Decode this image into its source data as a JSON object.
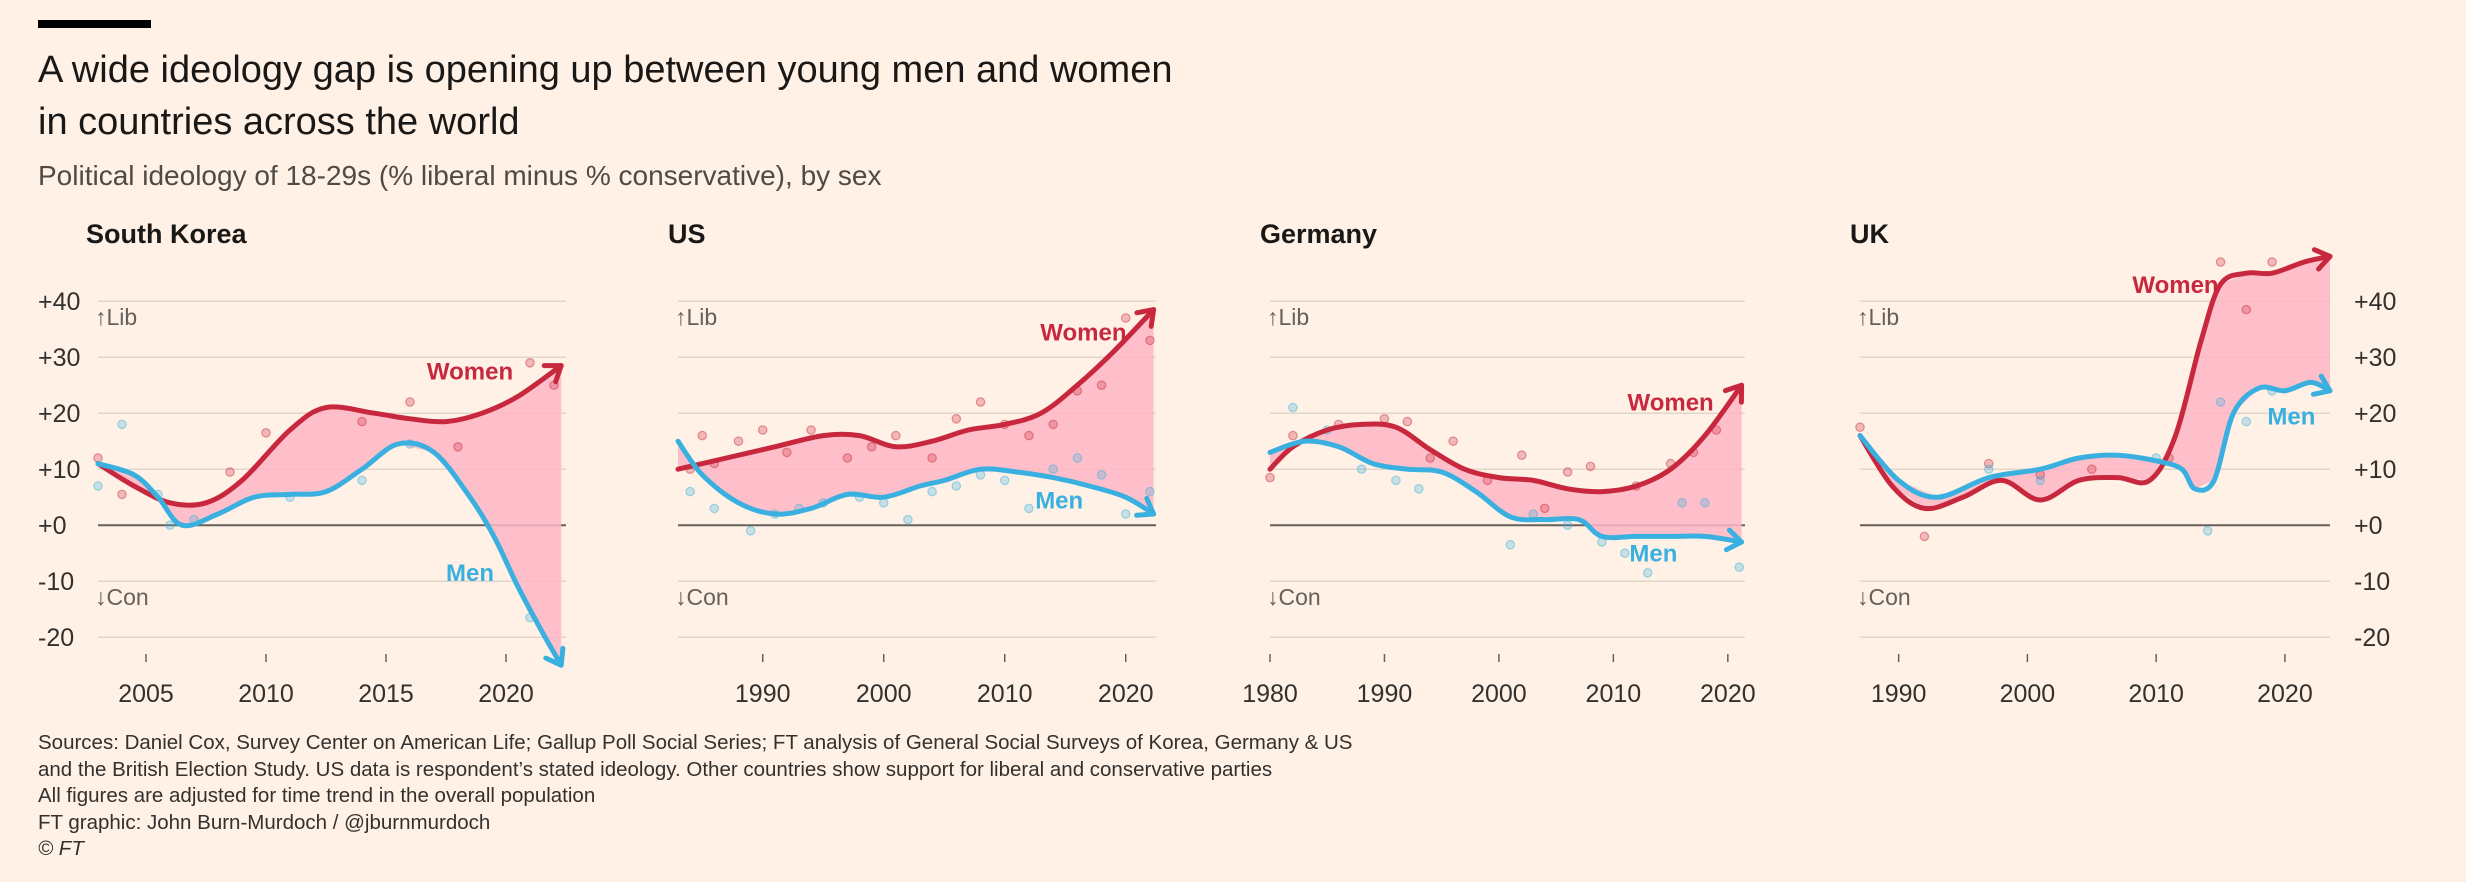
{
  "title_line1": "A wide ideology gap is opening up between young men and women",
  "title_line2": "in countries across the world",
  "subtitle": "Political ideology of 18-29s (% liberal minus % conservative), by sex",
  "footer": {
    "line1": "Sources: Daniel Cox, Survey Center on American Life; Gallup Poll Social Series; FT analysis of General Social Surveys of Korea, Germany & US",
    "line2": "and the British Election Study. US data is respondent’s stated ideology. Other countries show support for liberal and conservative parties",
    "line3": "All figures are adjusted for time trend in the overall population",
    "line4": "FT graphic: John Burn-Murdoch / @jburnmurdoch",
    "line5": "© FT"
  },
  "colors": {
    "background": "#fff1e5",
    "women": "#c8283e",
    "men": "#3ab0e0",
    "gap_fill": "#ffb6c6",
    "grid": "#e2d6ca",
    "zero_line": "#66605c",
    "axis_text": "#66605c"
  },
  "chart_data": [
    {
      "type": "line",
      "title": "South Korea",
      "xlim": [
        2003,
        2022.5
      ],
      "ylim": [
        -23,
        42
      ],
      "xticks": [
        2005,
        2010,
        2015,
        2020
      ],
      "yticks": [
        40,
        30,
        20,
        10,
        0,
        -10,
        -20
      ],
      "ytick_labels": [
        "+40",
        "+30",
        "+20",
        "+10",
        "+0",
        "-10",
        "-20"
      ],
      "ytick_side": "left",
      "annotations": {
        "lib": "↑Lib",
        "con": "↓Con"
      },
      "series": [
        {
          "name": "Women",
          "label_at": [
            2018.5,
            26
          ],
          "x": [
            2003,
            2004.5,
            2006,
            2007.5,
            2009,
            2011,
            2012.5,
            2014.5,
            2016,
            2017.5,
            2019,
            2020.5,
            2022.3
          ],
          "values": [
            11,
            7,
            4,
            4,
            8,
            17,
            21,
            20,
            19,
            18.5,
            20,
            23,
            28.5
          ]
        },
        {
          "name": "Men",
          "label_at": [
            2018.5,
            -10
          ],
          "x": [
            2003,
            2004.5,
            2005.5,
            2006.5,
            2008,
            2009.5,
            2011,
            2012.5,
            2014,
            2015.5,
            2017,
            2018.5,
            2019.5,
            2020.5,
            2021.5,
            2022.3
          ],
          "values": [
            11,
            9,
            5,
            0,
            2,
            5,
            5.5,
            6,
            10,
            14.5,
            13,
            5,
            -2,
            -11,
            -19,
            -25
          ]
        }
      ],
      "points": {
        "Women": [
          [
            2003,
            12
          ],
          [
            2004,
            5.5
          ],
          [
            2008.5,
            9.5
          ],
          [
            2010,
            16.5
          ],
          [
            2014,
            18.5
          ],
          [
            2016,
            22
          ],
          [
            2018,
            14
          ],
          [
            2021,
            29
          ],
          [
            2022,
            25
          ]
        ],
        "Men": [
          [
            2003,
            7
          ],
          [
            2004,
            18
          ],
          [
            2005.5,
            5.5
          ],
          [
            2006,
            0
          ],
          [
            2007,
            1
          ],
          [
            2011,
            5
          ],
          [
            2014,
            8
          ],
          [
            2016,
            14.5
          ],
          [
            2021,
            -16.5
          ]
        ]
      }
    },
    {
      "type": "line",
      "title": "US",
      "xlim": [
        1983,
        2022.5
      ],
      "ylim": [
        -23,
        42
      ],
      "xticks": [
        1990,
        2000,
        2010,
        2020
      ],
      "yticks": [
        40,
        30,
        20,
        10,
        0,
        -10,
        -20
      ],
      "ytick_labels": [],
      "ytick_side": "none",
      "annotations": {
        "lib": "↑Lib",
        "con": "↓Con"
      },
      "series": [
        {
          "name": "Women",
          "label_at": [
            2016.5,
            33
          ],
          "x": [
            1983,
            1987,
            1991,
            1995,
            1998,
            2001,
            2004,
            2007,
            2010,
            2013,
            2016,
            2019,
            2022.3
          ],
          "values": [
            10,
            12,
            14,
            16,
            16,
            14,
            15,
            17,
            18,
            20,
            25,
            31,
            38.5
          ]
        },
        {
          "name": "Men",
          "label_at": [
            2014.5,
            3
          ],
          "x": [
            1983,
            1985,
            1988,
            1991,
            1994,
            1997,
            2000,
            2003,
            2005,
            2008,
            2011,
            2014,
            2017,
            2020,
            2022.3
          ],
          "values": [
            15,
            9,
            4,
            2,
            3,
            5.5,
            5,
            7,
            8,
            10,
            9.5,
            8.5,
            7,
            5,
            2
          ]
        }
      ],
      "points": {
        "Women": [
          [
            1984,
            10
          ],
          [
            1985,
            16
          ],
          [
            1986,
            11
          ],
          [
            1988,
            15
          ],
          [
            1990,
            17
          ],
          [
            1992,
            13
          ],
          [
            1994,
            17
          ],
          [
            1997,
            12
          ],
          [
            1999,
            14
          ],
          [
            2001,
            16
          ],
          [
            2004,
            12
          ],
          [
            2006,
            19
          ],
          [
            2008,
            22
          ],
          [
            2010,
            18
          ],
          [
            2012,
            16
          ],
          [
            2014,
            18
          ],
          [
            2016,
            24
          ],
          [
            2018,
            25
          ],
          [
            2020,
            37
          ],
          [
            2022,
            33
          ]
        ],
        "Men": [
          [
            1984,
            6
          ],
          [
            1986,
            3
          ],
          [
            1989,
            -1
          ],
          [
            1991,
            2
          ],
          [
            1993,
            3
          ],
          [
            1995,
            4
          ],
          [
            1998,
            5
          ],
          [
            2000,
            4
          ],
          [
            2002,
            1
          ],
          [
            2004,
            6
          ],
          [
            2006,
            7
          ],
          [
            2008,
            9
          ],
          [
            2010,
            8
          ],
          [
            2012,
            3
          ],
          [
            2014,
            10
          ],
          [
            2016,
            12
          ],
          [
            2018,
            9
          ],
          [
            2020,
            2
          ],
          [
            2022,
            6
          ]
        ]
      }
    },
    {
      "type": "line",
      "title": "Germany",
      "xlim": [
        1980,
        2021.5
      ],
      "ylim": [
        -23,
        42
      ],
      "xticks": [
        1980,
        1990,
        2000,
        2010,
        2020
      ],
      "yticks": [
        40,
        30,
        20,
        10,
        0,
        -10,
        -20
      ],
      "ytick_labels": [],
      "ytick_side": "none",
      "annotations": {
        "lib": "↑Lib",
        "con": "↓Con"
      },
      "series": [
        {
          "name": "Women",
          "label_at": [
            2015,
            20.5
          ],
          "x": [
            1980,
            1982,
            1985,
            1988,
            1991,
            1994,
            1997,
            2000,
            2003,
            2006,
            2009,
            2012,
            2015,
            2018,
            2021.2
          ],
          "values": [
            10,
            14,
            17,
            18,
            17.5,
            13.5,
            10,
            8.5,
            8,
            6.5,
            6,
            7,
            10,
            16,
            25
          ]
        },
        {
          "name": "Men",
          "label_at": [
            2013.5,
            -6.5
          ],
          "x": [
            1980,
            1983,
            1986,
            1989,
            1992,
            1995,
            1998,
            2001,
            2004,
            2007,
            2009,
            2012,
            2015,
            2018,
            2021.2
          ],
          "values": [
            13,
            15,
            14,
            11,
            10,
            9.5,
            6,
            1.5,
            1,
            1,
            -2,
            -2,
            -2,
            -2,
            -3
          ]
        }
      ],
      "points": {
        "Women": [
          [
            1980,
            8.5
          ],
          [
            1982,
            16
          ],
          [
            1986,
            18
          ],
          [
            1990,
            19
          ],
          [
            1992,
            18.5
          ],
          [
            1994,
            12
          ],
          [
            1996,
            15
          ],
          [
            1999,
            8
          ],
          [
            2002,
            12.5
          ],
          [
            2004,
            3
          ],
          [
            2006,
            9.5
          ],
          [
            2008,
            10.5
          ],
          [
            2012,
            7
          ],
          [
            2015,
            11
          ],
          [
            2017,
            13
          ],
          [
            2019,
            17
          ]
        ],
        "Men": [
          [
            1982,
            21
          ],
          [
            1985,
            17
          ],
          [
            1988,
            10
          ],
          [
            1991,
            8
          ],
          [
            1993,
            6.5
          ],
          [
            2001,
            -3.5
          ],
          [
            2003,
            2
          ],
          [
            2006,
            0
          ],
          [
            2009,
            -3
          ],
          [
            2011,
            -5
          ],
          [
            2013,
            -8.5
          ],
          [
            2016,
            4
          ],
          [
            2018,
            4
          ],
          [
            2021,
            -7.5
          ]
        ]
      }
    },
    {
      "type": "line",
      "title": "UK",
      "xlim": [
        1987,
        2023.5
      ],
      "ylim": [
        -23,
        42
      ],
      "xticks": [
        1990,
        2000,
        2010,
        2020
      ],
      "yticks": [
        40,
        30,
        20,
        10,
        0,
        -10,
        -20
      ],
      "ytick_labels": [
        "+40",
        "+30",
        "+20",
        "+10",
        "+0",
        "-10",
        "-20"
      ],
      "ytick_side": "right",
      "annotations": {
        "lib": "↑Lib",
        "con": "↓Con"
      },
      "series": [
        {
          "name": "Women",
          "label_at": [
            2011.5,
            41.5
          ],
          "x": [
            1987,
            1989.5,
            1992,
            1995,
            1998,
            2001,
            2004,
            2007,
            2009.5,
            2011.5,
            2013.5,
            2015,
            2017,
            2019,
            2021.5,
            2023.5
          ],
          "values": [
            16,
            7,
            3,
            5,
            8,
            4.5,
            8,
            8.5,
            8,
            16,
            33,
            43,
            45,
            45,
            47,
            48
          ]
        },
        {
          "name": "Men",
          "label_at": [
            2020.5,
            18
          ],
          "x": [
            1987,
            1990,
            1993,
            1997,
            2001,
            2004,
            2007,
            2010,
            2012,
            2013,
            2014.5,
            2016,
            2018,
            2020,
            2022,
            2023.5
          ],
          "values": [
            16,
            8,
            5,
            8.5,
            10,
            12,
            12.5,
            11.5,
            10,
            6.5,
            8,
            20,
            24.5,
            24,
            25.5,
            24
          ]
        }
      ],
      "points": {
        "Women": [
          [
            1987,
            17.5
          ],
          [
            1992,
            -2
          ],
          [
            1997,
            11
          ],
          [
            2001,
            9
          ],
          [
            2005,
            10
          ],
          [
            2011,
            12
          ],
          [
            2015,
            47
          ],
          [
            2017,
            38.5
          ],
          [
            2019,
            47
          ]
        ],
        "Men": [
          [
            1997,
            10
          ],
          [
            2001,
            8
          ],
          [
            2010,
            12
          ],
          [
            2014,
            -1
          ],
          [
            2015,
            22
          ],
          [
            2017,
            18.5
          ],
          [
            2019,
            24
          ]
        ]
      }
    }
  ]
}
